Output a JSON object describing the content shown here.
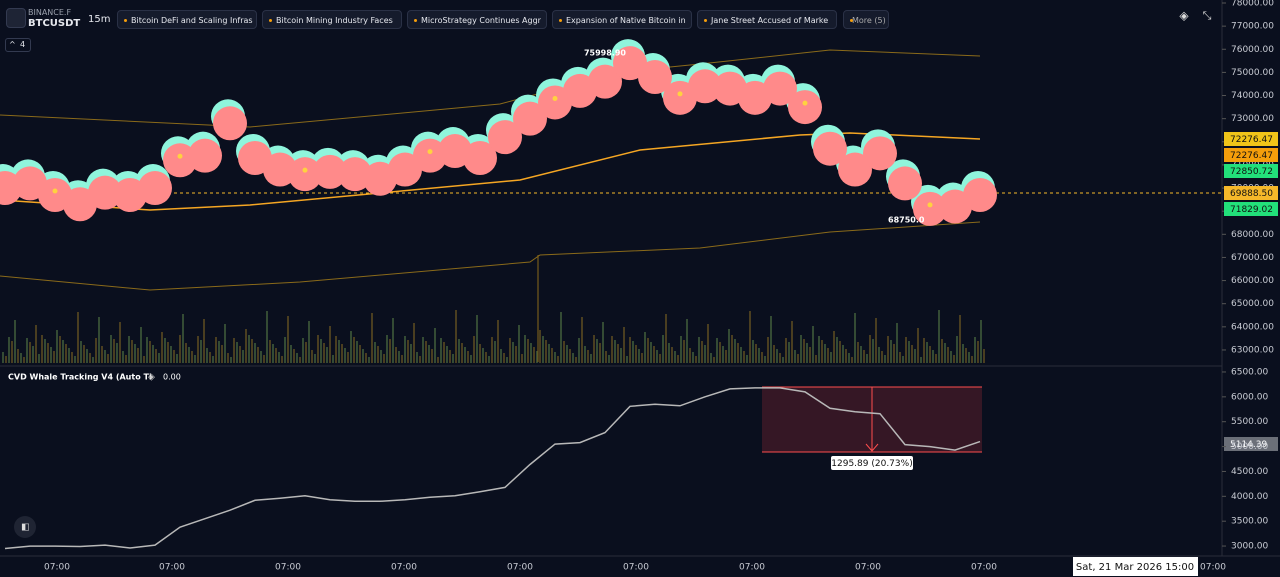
{
  "header": {
    "exchange": "BINANCE.F",
    "symbol": "BTCUSDT",
    "interval": "15m",
    "news": [
      "Bitcoin DeFi and Scaling Infras",
      "Bitcoin Mining Industry Faces",
      "MicroStrategy Continues Aggr",
      "Expansion of Native Bitcoin in",
      "Jane Street Accused of Marke"
    ],
    "more": "More (5)",
    "collapse_count": 4
  },
  "price_chart": {
    "ylim": [
      62350,
      78130
    ],
    "yticks": [
      {
        "value": 78000,
        "label": "78000.00"
      },
      {
        "value": 77000,
        "label": "77000.00"
      },
      {
        "value": 76000,
        "label": "76000.00"
      },
      {
        "value": 75000,
        "label": "75000.00"
      },
      {
        "value": 74000,
        "label": "74000.00"
      },
      {
        "value": 73000,
        "label": "73000.00"
      },
      {
        "value": 72000,
        "label": "72000.00"
      },
      {
        "value": 71000,
        "label": "71000.00"
      },
      {
        "value": 70000,
        "label": "70000.00"
      },
      {
        "value": 69000,
        "label": "69000.00"
      },
      {
        "value": 68000,
        "label": "68000.00"
      },
      {
        "value": 67000,
        "label": "67000.00"
      },
      {
        "value": 66000,
        "label": "66000.00"
      },
      {
        "value": 65000,
        "label": "65000.00"
      },
      {
        "value": 64000,
        "label": "64000.00"
      },
      {
        "value": 63000,
        "label": "63000.00"
      }
    ],
    "values": [
      70000,
      70200,
      69700,
      69300,
      69800,
      69700,
      70000,
      71200,
      71400,
      72800,
      71300,
      70800,
      70600,
      70700,
      70600,
      70400,
      70800,
      71400,
      71600,
      71300,
      72200,
      73000,
      73700,
      74200,
      74600,
      75400,
      74800,
      73900,
      74400,
      74300,
      73900,
      74300,
      73500,
      71700,
      70800,
      71500,
      70200,
      69100,
      69200,
      69700
    ],
    "annotations": [
      "75998.90",
      "68750.0"
    ],
    "badges": [
      {
        "label": "72276.47",
        "color": "#f0c419"
      },
      {
        "label": "72276.47",
        "color": "#f59e0b"
      },
      {
        "label": "72850.72",
        "color": "#22e07a"
      },
      {
        "label": "69888.50",
        "color": "#f5b82a"
      },
      {
        "label": "71829.02",
        "color": "#22e07a"
      }
    ]
  },
  "indicator": {
    "name": "CVD Whale Tracking V4 (Auto Ti",
    "reading": "0.00",
    "ylim": [
      2800,
      6620
    ],
    "yticks": [
      {
        "value": 6500,
        "label": "6500.00"
      },
      {
        "value": 6000,
        "label": "6000.00"
      },
      {
        "value": 5500,
        "label": "5500.00"
      },
      {
        "value": 5000,
        "label": "5000.00"
      },
      {
        "value": 4500,
        "label": "4500.00"
      },
      {
        "value": 4000,
        "label": "4000.00"
      },
      {
        "value": 3500,
        "label": "3500.00"
      },
      {
        "value": 3000,
        "label": "3000.00"
      }
    ],
    "values": [
      2950,
      3000,
      3000,
      2990,
      3020,
      2960,
      3020,
      3380,
      3550,
      3720,
      3920,
      3960,
      4010,
      3930,
      3900,
      3900,
      3930,
      3980,
      4010,
      4090,
      4180,
      4640,
      5050,
      5080,
      5280,
      5810,
      5850,
      5820,
      6000,
      6160,
      6180,
      6180,
      6100,
      5770,
      5700,
      5660,
      5040,
      5000,
      4930,
      5100
    ],
    "badge": "5114.39",
    "measure": "1295.89 (20.73%)"
  },
  "time_axis": {
    "labels": [
      "07:00",
      "07:00",
      "07:00",
      "07:00",
      "07:00",
      "07:00",
      "07:00",
      "07:00",
      "07:00",
      "07:00"
    ],
    "crosshair": "Sat, 21 Mar 2026 15:00"
  }
}
